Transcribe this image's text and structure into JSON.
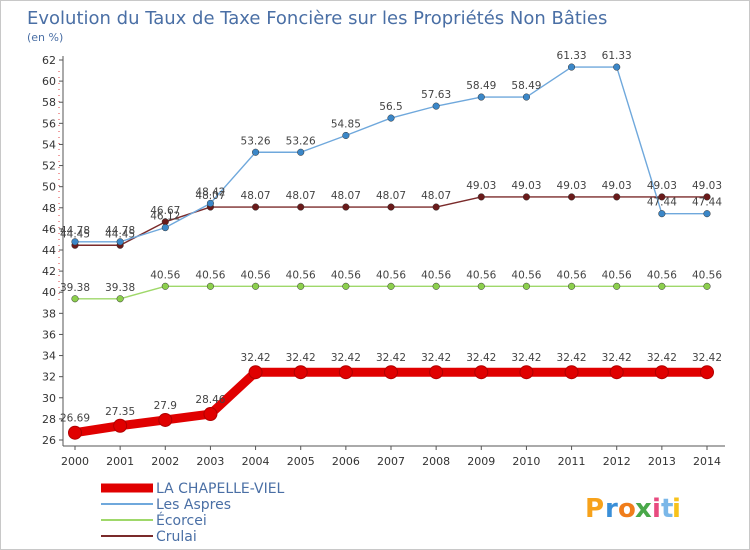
{
  "chart_data": {
    "type": "line",
    "title": "Evolution du Taux de Taxe Foncière sur les Propriétés Non Bâties",
    "subtitle": "(en %)",
    "xlabel": "",
    "ylabel": "",
    "categories": [
      "2000",
      "2001",
      "2002",
      "2003",
      "2004",
      "2005",
      "2006",
      "2007",
      "2008",
      "2009",
      "2010",
      "2011",
      "2012",
      "2013",
      "2014"
    ],
    "yticks": [
      26,
      28,
      30,
      32,
      34,
      36,
      38,
      40,
      42,
      44,
      46,
      48,
      50,
      52,
      54,
      56,
      58,
      60,
      62
    ],
    "ylim": [
      26,
      62
    ],
    "series": [
      {
        "name": "LA CHAPELLE-VIEL",
        "color": "#e00000",
        "values": [
          26.69,
          27.35,
          27.9,
          28.46,
          32.42,
          32.42,
          32.42,
          32.42,
          32.42,
          32.42,
          32.42,
          32.42,
          32.42,
          32.42,
          32.42
        ],
        "labels": [
          "26.69",
          "27.35",
          "27.9",
          "28.46",
          "32.42",
          "32.42",
          "32.42",
          "32.42",
          "32.42",
          "32.42",
          "32.42",
          "32.42",
          "32.42",
          "32.42",
          "32.42"
        ]
      },
      {
        "name": "Les Aspres",
        "color": "#6fa8dc",
        "values": [
          44.78,
          44.78,
          46.12,
          48.42,
          53.26,
          53.26,
          54.85,
          56.5,
          57.63,
          58.49,
          58.49,
          61.33,
          61.33,
          47.44,
          47.44
        ],
        "labels": [
          "44.78",
          "44.78",
          "46.12",
          "48.42",
          "53.26",
          "53.26",
          "54.85",
          "56.5",
          "57.63",
          "58.49",
          "58.49",
          "61.33",
          "61.33",
          "47.44",
          "47.44"
        ]
      },
      {
        "name": "Écorcei",
        "color": "#9fd86a",
        "values": [
          39.38,
          39.38,
          40.56,
          40.56,
          40.56,
          40.56,
          40.56,
          40.56,
          40.56,
          40.56,
          40.56,
          40.56,
          40.56,
          40.56,
          40.56
        ],
        "labels": [
          "39.38",
          "39.38",
          "40.56",
          "40.56",
          "40.56",
          "40.56",
          "40.56",
          "40.56",
          "40.56",
          "40.56",
          "40.56",
          "40.56",
          "40.56",
          "40.56",
          "40.56"
        ]
      },
      {
        "name": "Crulai",
        "color": "#7a2a2a",
        "values": [
          44.45,
          44.45,
          46.67,
          48.07,
          48.07,
          48.07,
          48.07,
          48.07,
          48.07,
          49.03,
          49.03,
          49.03,
          49.03,
          49.03,
          49.03
        ],
        "labels": [
          "44.45",
          "44.45",
          "46.67",
          "48.07",
          "48.07",
          "48.07",
          "48.07",
          "48.07",
          "48.07",
          "49.03",
          "49.03",
          "49.03",
          "49.03",
          "49.03",
          "49.03"
        ]
      }
    ],
    "legend_position": "bottom-left",
    "grid": false
  },
  "brand": {
    "letters": [
      "P",
      "r",
      "o",
      "x",
      "i",
      "t",
      "i"
    ],
    "colors": [
      "#f7a21b",
      "#3a8fd8",
      "#f07d1a",
      "#4aa84a",
      "#e84a7f",
      "#7ab7e8",
      "#f7c21b"
    ]
  }
}
